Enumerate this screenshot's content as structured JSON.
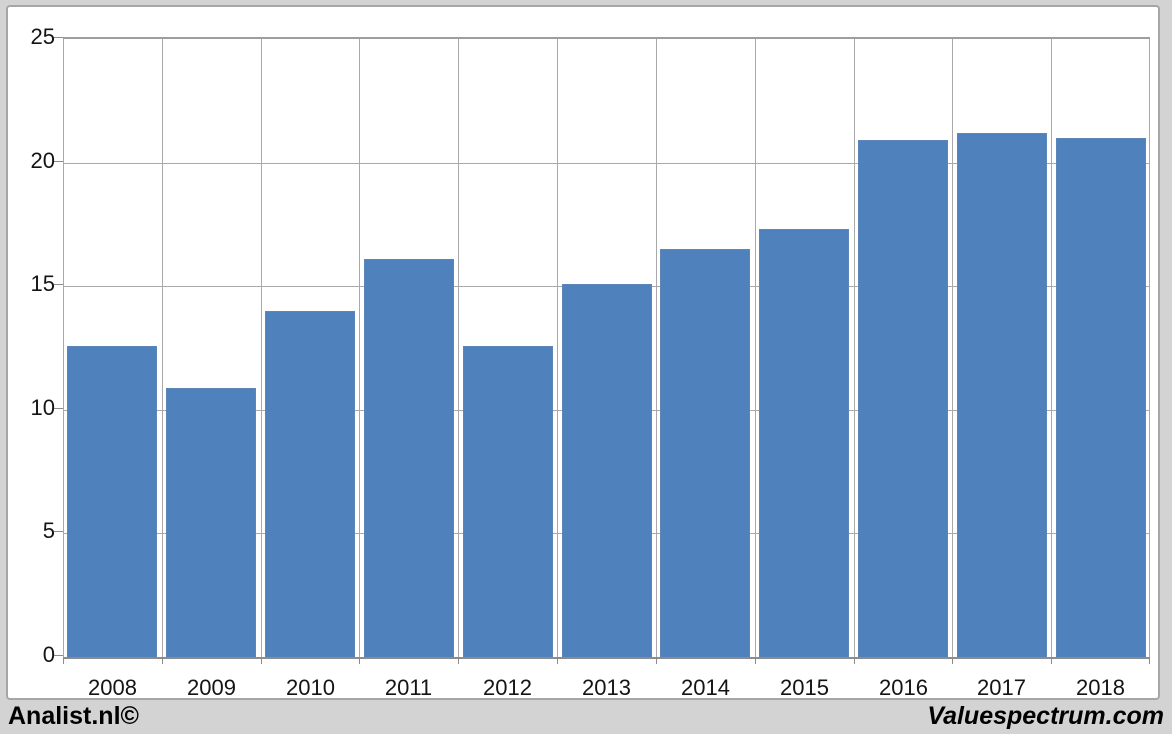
{
  "chart_data": {
    "type": "bar",
    "categories": [
      "2008",
      "2009",
      "2010",
      "2011",
      "2012",
      "2013",
      "2014",
      "2015",
      "2016",
      "2017",
      "2018"
    ],
    "values": [
      12.6,
      10.9,
      14.0,
      16.1,
      12.6,
      15.1,
      16.5,
      17.3,
      20.9,
      21.2,
      21.0
    ],
    "title": "",
    "xlabel": "",
    "ylabel": "",
    "ylim": [
      0,
      25
    ],
    "yticks": [
      0,
      5,
      10,
      15,
      20,
      25
    ],
    "grid": true,
    "legend": "none",
    "bar_color": "#4f81bd",
    "bar_border_color": "#5c85b8",
    "gridline_color": "#a9a9a9",
    "axis_color": "#8c8c8c",
    "plot_background": "#ffffff",
    "outer_background": "#d3d3d3"
  },
  "footer": {
    "left": "Analist.nl©",
    "right": "Valuespectrum.com"
  }
}
